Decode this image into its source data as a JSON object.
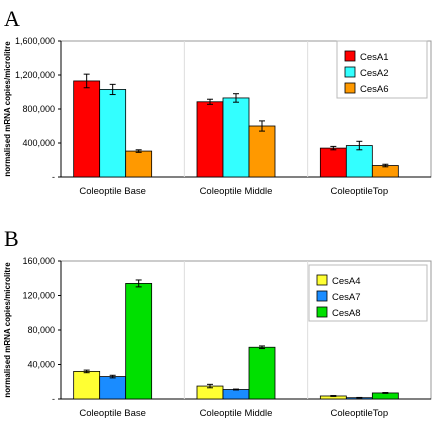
{
  "chart_data": [
    {
      "type": "bar",
      "panel_label": "A",
      "title": "",
      "ylabel": "normalised mRNA copies/microlitre",
      "xlabel": "",
      "categories": [
        "Coleoptile Base",
        "Coleoptile Middle",
        "ColeoptileTop"
      ],
      "yticks": [
        "1,600,000",
        "1,200,000",
        "800,000",
        "400,000",
        "-"
      ],
      "ylim": [
        0,
        1600000
      ],
      "grid": false,
      "legend": "top-right",
      "series": [
        {
          "name": "CesA1",
          "color": "#ff0000",
          "values": [
            1130000,
            885000,
            340000
          ],
          "errors": [
            80000,
            30000,
            20000
          ]
        },
        {
          "name": "CesA2",
          "color": "#33ffff",
          "values": [
            1030000,
            930000,
            370000
          ],
          "errors": [
            60000,
            50000,
            50000
          ]
        },
        {
          "name": "CesA6",
          "color": "#ff9900",
          "values": [
            305000,
            600000,
            135000
          ],
          "errors": [
            15000,
            60000,
            15000
          ]
        }
      ]
    },
    {
      "type": "bar",
      "panel_label": "B",
      "title": "",
      "ylabel": "normalised mRNA copies/microlitre",
      "xlabel": "",
      "categories": [
        "Coleoptile Base",
        "Coleoptile Middle",
        "ColeoptileTop"
      ],
      "yticks": [
        "160,000",
        "120,000",
        "80,000",
        "40,000",
        "-"
      ],
      "ylim": [
        0,
        160000
      ],
      "grid": false,
      "legend": "top-right",
      "series": [
        {
          "name": "CesA4",
          "color": "#ffff33",
          "values": [
            32000,
            15000,
            3500
          ],
          "errors": [
            1500,
            2000,
            500
          ]
        },
        {
          "name": "CesA7",
          "color": "#1a8cff",
          "values": [
            26000,
            11000,
            1500
          ],
          "errors": [
            1500,
            500,
            300
          ]
        },
        {
          "name": "CesA8",
          "color": "#00e000",
          "values": [
            134000,
            60000,
            7000
          ],
          "errors": [
            4000,
            1500,
            500
          ]
        }
      ]
    }
  ]
}
